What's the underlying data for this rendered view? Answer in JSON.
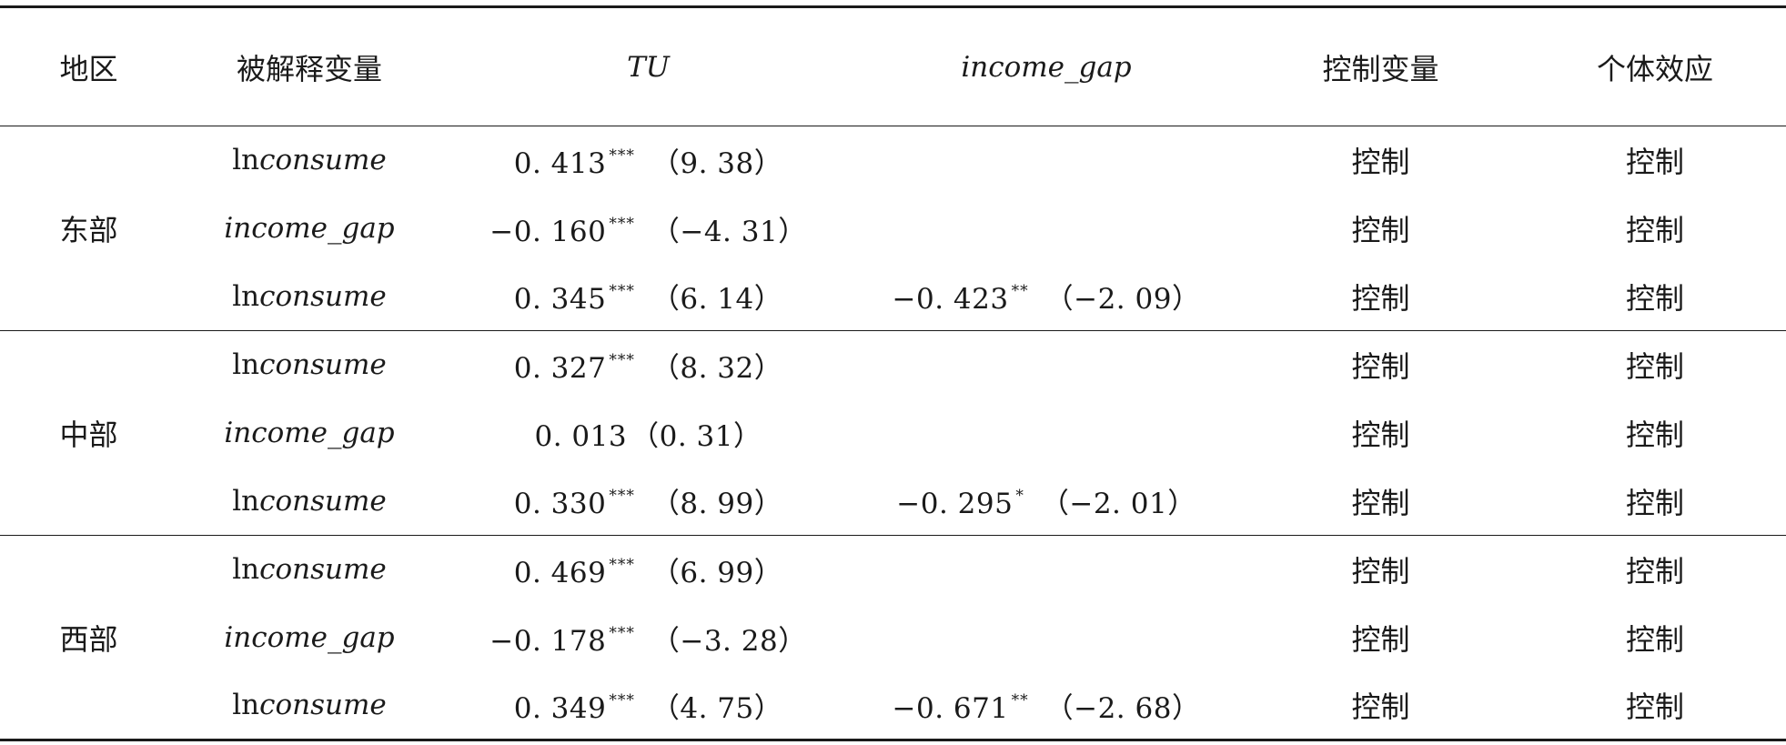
{
  "header": {
    "region": "地区",
    "dependent_variable": "被解释变量",
    "tu": "TU",
    "income_gap": "income_gap",
    "control_variables": "控制变量",
    "individual_effect": "个体效应"
  },
  "groups": [
    {
      "region": "东部",
      "rows": [
        {
          "dep_prefix": "ln",
          "dep_italic": "consume",
          "tu_coef": "0. 413",
          "tu_stars": "***",
          "tu_t": "（9. 38）",
          "gap_coef": "",
          "gap_stars": "",
          "gap_t": "",
          "control": "控制",
          "individual": "控制"
        },
        {
          "dep_prefix": "",
          "dep_italic": "income_gap",
          "tu_coef": "−0. 160",
          "tu_stars": "***",
          "tu_t": "（−4. 31）",
          "gap_coef": "",
          "gap_stars": "",
          "gap_t": "",
          "control": "控制",
          "individual": "控制"
        },
        {
          "dep_prefix": "ln",
          "dep_italic": "consume",
          "tu_coef": "0. 345",
          "tu_stars": "***",
          "tu_t": "（6. 14）",
          "gap_coef": "−0. 423",
          "gap_stars": "**",
          "gap_t": "（−2. 09）",
          "control": "控制",
          "individual": "控制"
        }
      ]
    },
    {
      "region": "中部",
      "rows": [
        {
          "dep_prefix": "ln",
          "dep_italic": "consume",
          "tu_coef": "0. 327",
          "tu_stars": "***",
          "tu_t": "（8. 32）",
          "gap_coef": "",
          "gap_stars": "",
          "gap_t": "",
          "control": "控制",
          "individual": "控制"
        },
        {
          "dep_prefix": "",
          "dep_italic": "income_gap",
          "tu_coef": "0. 013",
          "tu_stars": "",
          "tu_t": "（0. 31）",
          "gap_coef": "",
          "gap_stars": "",
          "gap_t": "",
          "control": "控制",
          "individual": "控制"
        },
        {
          "dep_prefix": "ln",
          "dep_italic": "consume",
          "tu_coef": "0. 330",
          "tu_stars": "***",
          "tu_t": "（8. 99）",
          "gap_coef": "−0. 295",
          "gap_stars": "*",
          "gap_t": "（−2. 01）",
          "control": "控制",
          "individual": "控制"
        }
      ]
    },
    {
      "region": "西部",
      "rows": [
        {
          "dep_prefix": "ln",
          "dep_italic": "consume",
          "tu_coef": "0. 469",
          "tu_stars": "***",
          "tu_t": "（6. 99）",
          "gap_coef": "",
          "gap_stars": "",
          "gap_t": "",
          "control": "控制",
          "individual": "控制"
        },
        {
          "dep_prefix": "",
          "dep_italic": "income_gap",
          "tu_coef": "−0. 178",
          "tu_stars": "***",
          "tu_t": "（−3. 28）",
          "gap_coef": "",
          "gap_stars": "",
          "gap_t": "",
          "control": "控制",
          "individual": "控制"
        },
        {
          "dep_prefix": "ln",
          "dep_italic": "consume",
          "tu_coef": "0. 349",
          "tu_stars": "***",
          "tu_t": "（4. 75）",
          "gap_coef": "−0. 671",
          "gap_stars": "**",
          "gap_t": "（−2. 68）",
          "control": "控制",
          "individual": "控制"
        }
      ]
    }
  ]
}
